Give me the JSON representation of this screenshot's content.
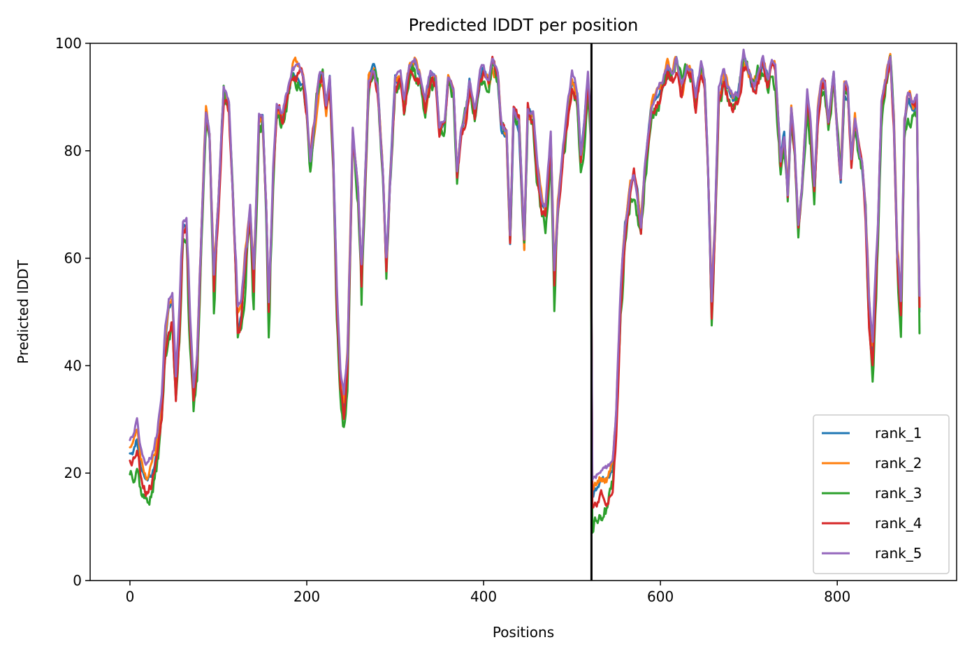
{
  "chart_data": {
    "type": "line",
    "title": "Predicted lDDT per position",
    "xlabel": "Positions",
    "ylabel": "Predicted lDDT",
    "xlim": [
      -45,
      935
    ],
    "ylim": [
      0,
      100
    ],
    "xticks": [
      0,
      200,
      400,
      600,
      800
    ],
    "yticks": [
      0,
      20,
      40,
      60,
      80,
      100
    ],
    "grid": false,
    "legend_position": "lower-right",
    "vertical_line": {
      "x": 522,
      "color": "#000000"
    },
    "base_profile": [
      [
        0,
        24
      ],
      [
        5,
        25
      ],
      [
        8,
        27
      ],
      [
        12,
        22
      ],
      [
        18,
        19
      ],
      [
        24,
        20
      ],
      [
        30,
        24
      ],
      [
        36,
        33
      ],
      [
        40,
        45
      ],
      [
        44,
        50
      ],
      [
        48,
        52
      ],
      [
        52,
        36
      ],
      [
        56,
        48
      ],
      [
        60,
        66
      ],
      [
        64,
        67
      ],
      [
        68,
        48
      ],
      [
        72,
        34
      ],
      [
        76,
        40
      ],
      [
        82,
        70
      ],
      [
        86,
        87
      ],
      [
        90,
        83
      ],
      [
        95,
        56
      ],
      [
        100,
        70
      ],
      [
        106,
        91
      ],
      [
        112,
        88
      ],
      [
        118,
        65
      ],
      [
        122,
        48
      ],
      [
        126,
        50
      ],
      [
        130,
        58
      ],
      [
        136,
        68
      ],
      [
        140,
        55
      ],
      [
        146,
        86
      ],
      [
        150,
        86
      ],
      [
        154,
        70
      ],
      [
        157,
        50
      ],
      [
        162,
        75
      ],
      [
        166,
        87
      ],
      [
        172,
        86
      ],
      [
        178,
        90
      ],
      [
        184,
        95
      ],
      [
        190,
        95
      ],
      [
        196,
        93
      ],
      [
        200,
        87
      ],
      [
        204,
        77
      ],
      [
        208,
        84
      ],
      [
        214,
        93
      ],
      [
        218,
        94
      ],
      [
        222,
        88
      ],
      [
        226,
        93
      ],
      [
        230,
        78
      ],
      [
        234,
        52
      ],
      [
        238,
        37
      ],
      [
        242,
        32
      ],
      [
        246,
        40
      ],
      [
        252,
        83
      ],
      [
        258,
        72
      ],
      [
        262,
        56
      ],
      [
        266,
        75
      ],
      [
        270,
        93
      ],
      [
        276,
        95
      ],
      [
        280,
        92
      ],
      [
        286,
        76
      ],
      [
        290,
        58
      ],
      [
        294,
        73
      ],
      [
        300,
        93
      ],
      [
        306,
        93
      ],
      [
        310,
        88
      ],
      [
        316,
        95
      ],
      [
        322,
        96
      ],
      [
        328,
        94
      ],
      [
        334,
        88
      ],
      [
        340,
        94
      ],
      [
        346,
        94
      ],
      [
        350,
        84
      ],
      [
        356,
        85
      ],
      [
        360,
        93
      ],
      [
        366,
        90
      ],
      [
        370,
        75
      ],
      [
        374,
        82
      ],
      [
        380,
        86
      ],
      [
        384,
        92
      ],
      [
        390,
        86
      ],
      [
        396,
        93
      ],
      [
        400,
        95
      ],
      [
        406,
        92
      ],
      [
        410,
        96
      ],
      [
        416,
        94
      ],
      [
        420,
        85
      ],
      [
        426,
        83
      ],
      [
        430,
        63
      ],
      [
        434,
        87
      ],
      [
        440,
        85
      ],
      [
        446,
        63
      ],
      [
        450,
        88
      ],
      [
        456,
        86
      ],
      [
        460,
        78
      ],
      [
        466,
        70
      ],
      [
        470,
        68
      ],
      [
        476,
        82
      ],
      [
        480,
        55
      ],
      [
        484,
        68
      ],
      [
        490,
        80
      ],
      [
        496,
        88
      ],
      [
        500,
        93
      ],
      [
        506,
        90
      ],
      [
        510,
        79
      ],
      [
        514,
        85
      ],
      [
        518,
        93
      ],
      [
        521,
        86
      ],
      [
        523,
        16
      ],
      [
        528,
        17
      ],
      [
        534,
        18
      ],
      [
        540,
        18
      ],
      [
        546,
        20
      ],
      [
        550,
        30
      ],
      [
        555,
        52
      ],
      [
        560,
        65
      ],
      [
        566,
        73
      ],
      [
        570,
        75
      ],
      [
        574,
        71
      ],
      [
        578,
        65
      ],
      [
        582,
        75
      ],
      [
        586,
        82
      ],
      [
        590,
        88
      ],
      [
        596,
        90
      ],
      [
        602,
        92
      ],
      [
        608,
        95
      ],
      [
        614,
        94
      ],
      [
        618,
        97
      ],
      [
        624,
        91
      ],
      [
        630,
        95
      ],
      [
        636,
        94
      ],
      [
        640,
        89
      ],
      [
        646,
        95
      ],
      [
        650,
        91
      ],
      [
        654,
        75
      ],
      [
        658,
        50
      ],
      [
        662,
        68
      ],
      [
        666,
        90
      ],
      [
        672,
        94
      ],
      [
        676,
        91
      ],
      [
        682,
        89
      ],
      [
        688,
        90
      ],
      [
        694,
        97
      ],
      [
        700,
        94
      ],
      [
        706,
        91
      ],
      [
        712,
        94
      ],
      [
        716,
        96
      ],
      [
        722,
        93
      ],
      [
        726,
        97
      ],
      [
        730,
        95
      ],
      [
        736,
        78
      ],
      [
        740,
        83
      ],
      [
        744,
        72
      ],
      [
        748,
        88
      ],
      [
        752,
        80
      ],
      [
        756,
        66
      ],
      [
        760,
        73
      ],
      [
        766,
        90
      ],
      [
        770,
        84
      ],
      [
        774,
        72
      ],
      [
        778,
        86
      ],
      [
        782,
        92
      ],
      [
        786,
        92
      ],
      [
        790,
        85
      ],
      [
        796,
        94
      ],
      [
        800,
        83
      ],
      [
        804,
        75
      ],
      [
        808,
        92
      ],
      [
        812,
        91
      ],
      [
        816,
        78
      ],
      [
        820,
        85
      ],
      [
        824,
        80
      ],
      [
        828,
        77
      ],
      [
        832,
        68
      ],
      [
        836,
        50
      ],
      [
        840,
        41
      ],
      [
        846,
        65
      ],
      [
        850,
        88
      ],
      [
        856,
        94
      ],
      [
        860,
        97
      ],
      [
        864,
        85
      ],
      [
        868,
        60
      ],
      [
        872,
        50
      ],
      [
        876,
        85
      ],
      [
        880,
        90
      ],
      [
        886,
        88
      ],
      [
        890,
        89
      ],
      [
        893,
        50
      ]
    ],
    "series": [
      {
        "name": "rank_1",
        "color": "#1f77b4",
        "offset": 0.0,
        "noise": 0.8,
        "seed": 11
      },
      {
        "name": "rank_2",
        "color": "#ff7f0e",
        "offset": 0.4,
        "noise": 1.0,
        "seed": 23
      },
      {
        "name": "rank_3",
        "color": "#2ca02c",
        "offset": -1.2,
        "noise": 1.6,
        "seed": 37
      },
      {
        "name": "rank_4",
        "color": "#d62728",
        "offset": -0.4,
        "noise": 1.2,
        "seed": 53
      },
      {
        "name": "rank_5",
        "color": "#9467bd",
        "offset": 0.8,
        "noise": 0.7,
        "seed": 71
      }
    ]
  }
}
